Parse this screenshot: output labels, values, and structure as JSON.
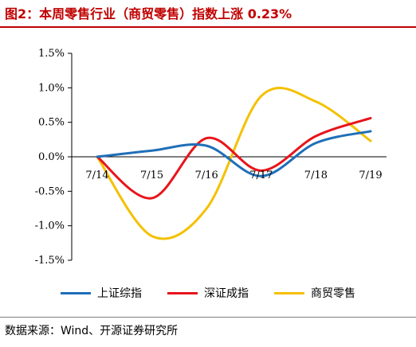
{
  "header": {
    "title": "图2：本周零售行业（商贸零售）指数上涨 0.23%"
  },
  "footer": {
    "source": "数据来源：Wind、开源证券研究所"
  },
  "chart_data": {
    "type": "line",
    "categories": [
      "7/14",
      "7/15",
      "7/16",
      "7/17",
      "7/18",
      "7/19"
    ],
    "y_ticks": [
      "1.5%",
      "1.0%",
      "0.5%",
      "0.0%",
      "-0.5%",
      "-1.0%",
      "-1.5%"
    ],
    "ylim": [
      -1.5,
      1.5
    ],
    "y_unit": "%",
    "grid": false,
    "legend_position": "bottom",
    "series": [
      {
        "name": "上证综指",
        "color": "#1f6fb8",
        "values": [
          0.0,
          0.09,
          0.16,
          -0.28,
          0.2,
          0.37
        ]
      },
      {
        "name": "深证成指",
        "color": "#e8141b",
        "values": [
          0.0,
          -0.6,
          0.27,
          -0.2,
          0.3,
          0.56
        ]
      },
      {
        "name": "商贸零售",
        "color": "#f5c000",
        "values": [
          0.0,
          -1.15,
          -0.75,
          0.88,
          0.8,
          0.23
        ]
      }
    ]
  }
}
